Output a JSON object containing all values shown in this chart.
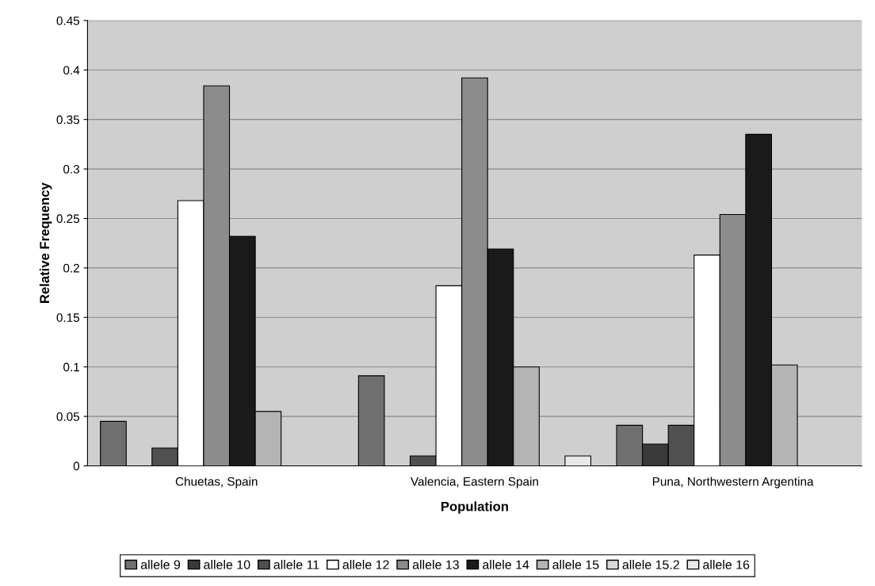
{
  "chart_data": {
    "type": "bar",
    "xlabel": "Population",
    "ylabel": "Relative Frequency",
    "categories": [
      "Chuetas, Spain",
      "Valencia, Eastern Spain",
      "Puna, Northwestern Argentina"
    ],
    "series": [
      {
        "name": "allele 9",
        "color": "#707070",
        "values": [
          0.045,
          0.091,
          0.041
        ]
      },
      {
        "name": "allele 10",
        "color": "#3a3a3a",
        "values": [
          null,
          null,
          0.022
        ]
      },
      {
        "name": "allele 11",
        "color": "#505050",
        "values": [
          0.018,
          0.01,
          0.041
        ]
      },
      {
        "name": "allele 12",
        "color": "#ffffff",
        "values": [
          0.268,
          0.182,
          0.213
        ]
      },
      {
        "name": "allele 13",
        "color": "#8c8c8c",
        "values": [
          0.384,
          0.392,
          0.254
        ]
      },
      {
        "name": "allele 14",
        "color": "#1a1a1a",
        "values": [
          0.232,
          0.219,
          0.335
        ]
      },
      {
        "name": "allele 15",
        "color": "#b4b4b4",
        "values": [
          0.055,
          0.1,
          0.102
        ]
      },
      {
        "name": "allele 15.2",
        "color": "#d8d8d8",
        "values": [
          null,
          null,
          null
        ]
      },
      {
        "name": "allele 16",
        "color": "#e8e8e8",
        "values": [
          null,
          0.01,
          null
        ]
      }
    ],
    "ylim": [
      0,
      0.45
    ],
    "yticks": [
      {
        "value": 0,
        "label": "0"
      },
      0.05,
      0.1,
      0.15,
      0.2,
      0.25,
      0.3,
      0.35,
      0.4,
      0.45
    ],
    "grid": "y",
    "legend": "bottom"
  }
}
